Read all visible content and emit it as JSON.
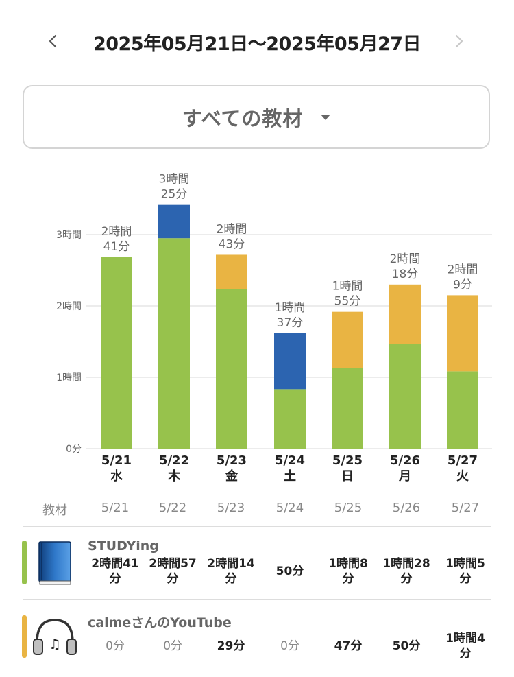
{
  "header": {
    "date_range": "2025年05月21日〜2025年05月27日",
    "prev_icon": "chevron-left-icon",
    "next_icon": "chevron-right-icon"
  },
  "material_select": {
    "label": "すべての教材",
    "icon": "caret-down-icon"
  },
  "colors": {
    "studying": "#97c24c",
    "youtube": "#e9b443",
    "other": "#2c64b0",
    "grid": "#d8d8d8"
  },
  "chart_data": {
    "type": "bar",
    "stacked": true,
    "y_unit": "minutes",
    "ylim": [
      0,
      180
    ],
    "y_ticks": [
      {
        "value": 0,
        "label": "0分"
      },
      {
        "value": 60,
        "label": "1時間"
      },
      {
        "value": 120,
        "label": "2時間"
      },
      {
        "value": 180,
        "label": "3時間"
      }
    ],
    "categories": [
      "5/21",
      "5/22",
      "5/23",
      "5/24",
      "5/25",
      "5/26",
      "5/27"
    ],
    "weekdays": [
      "水",
      "木",
      "金",
      "土",
      "日",
      "月",
      "火"
    ],
    "totals": [
      [
        "2時間",
        "41分"
      ],
      [
        "3時間",
        "25分"
      ],
      [
        "2時間",
        "43分"
      ],
      [
        "1時間",
        "37分"
      ],
      [
        "1時間",
        "55分"
      ],
      [
        "2時間",
        "18分"
      ],
      [
        "2時間",
        "9分"
      ]
    ],
    "series": [
      {
        "name": "STUDYing",
        "color": "#97c24c",
        "values": [
          161,
          177,
          134,
          50,
          68,
          88,
          65
        ]
      },
      {
        "name": "calmeさんのYouTube",
        "color": "#e9b443",
        "values": [
          0,
          0,
          29,
          0,
          47,
          50,
          64
        ]
      },
      {
        "color": "#2c64b0",
        "values": [
          0,
          28,
          0,
          47,
          0,
          0,
          0
        ]
      }
    ]
  },
  "table": {
    "header_label": "教材",
    "dates": [
      "5/21",
      "5/22",
      "5/23",
      "5/24",
      "5/25",
      "5/26",
      "5/27"
    ],
    "rows": [
      {
        "name": "STUDYing",
        "icon": "book-icon",
        "color": "#97c24c",
        "cells": [
          [
            "2時間41",
            "分"
          ],
          [
            "2時間57",
            "分"
          ],
          [
            "2時間14",
            "分"
          ],
          [
            "50分"
          ],
          [
            "1時間8",
            "分"
          ],
          [
            "1時間28",
            "分"
          ],
          [
            "1時間5",
            "分"
          ]
        ]
      },
      {
        "name": "calmeさんのYouTube",
        "icon": "headphones-icon",
        "color": "#e9b443",
        "cells": [
          [
            "0分"
          ],
          [
            "0分"
          ],
          [
            "29分"
          ],
          [
            "0分"
          ],
          [
            "47分"
          ],
          [
            "50分"
          ],
          [
            "1時間4",
            "分"
          ]
        ]
      }
    ]
  }
}
